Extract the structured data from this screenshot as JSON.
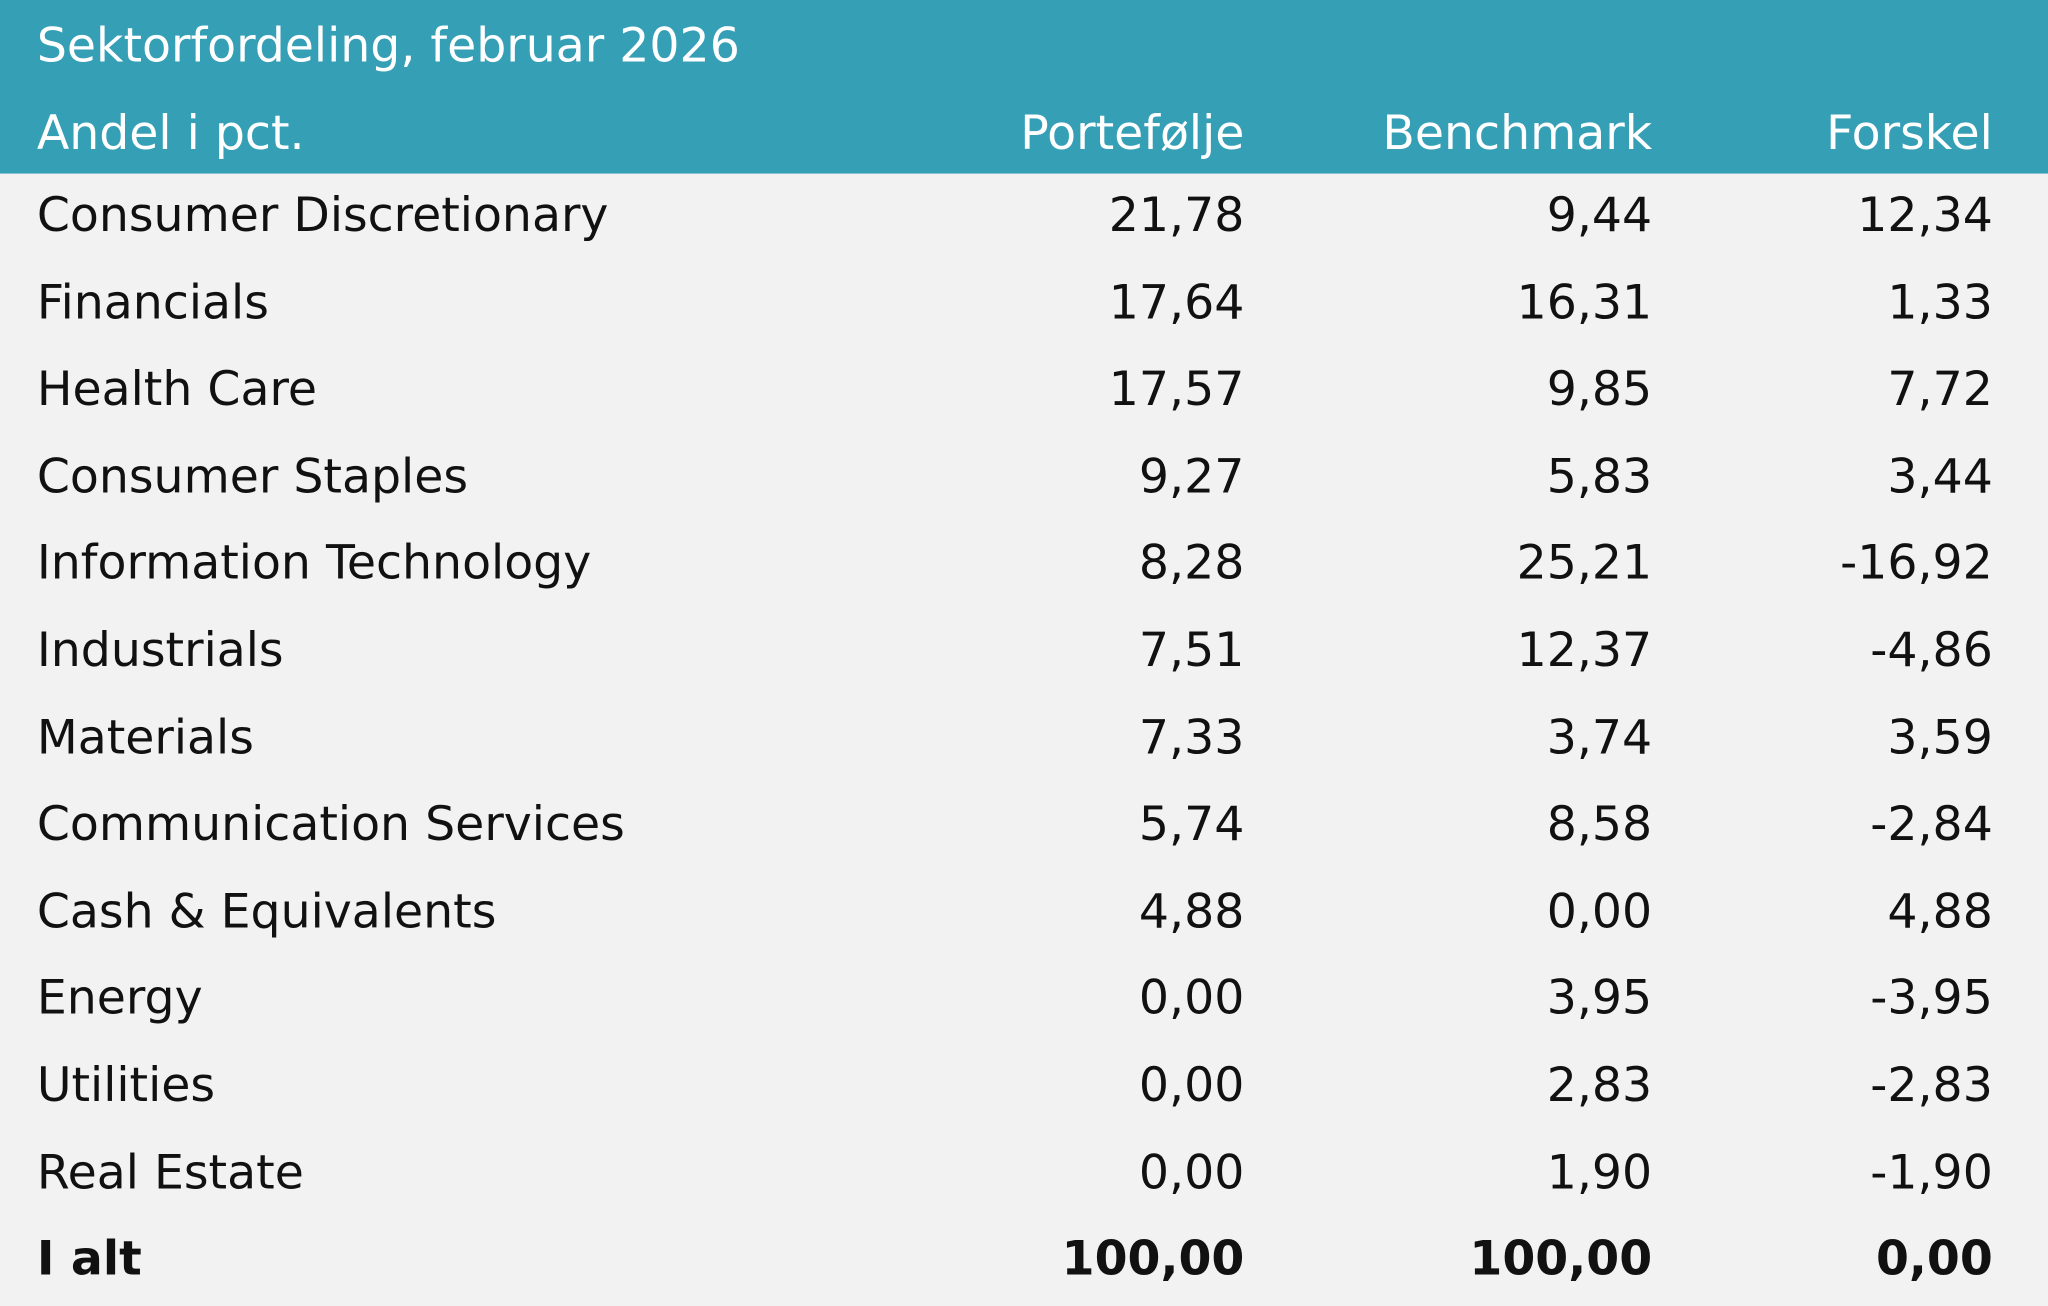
{
  "table": {
    "title": "Sektorfordeling, februar 2026",
    "columns": [
      "Andel i pct.",
      "Portefølje",
      "Benchmark",
      "Forskel"
    ],
    "rows": [
      {
        "sector": "Consumer Discretionary",
        "portfolio": "21,78",
        "benchmark": "9,44",
        "difference": "12,34"
      },
      {
        "sector": "Financials",
        "portfolio": "17,64",
        "benchmark": "16,31",
        "difference": "1,33"
      },
      {
        "sector": "Health Care",
        "portfolio": "17,57",
        "benchmark": "9,85",
        "difference": "7,72"
      },
      {
        "sector": "Consumer Staples",
        "portfolio": "9,27",
        "benchmark": "5,83",
        "difference": "3,44"
      },
      {
        "sector": "Information Technology",
        "portfolio": "8,28",
        "benchmark": "25,21",
        "difference": "-16,92"
      },
      {
        "sector": "Industrials",
        "portfolio": "7,51",
        "benchmark": "12,37",
        "difference": "-4,86"
      },
      {
        "sector": "Materials",
        "portfolio": "7,33",
        "benchmark": "3,74",
        "difference": "3,59"
      },
      {
        "sector": "Communication Services",
        "portfolio": "5,74",
        "benchmark": "8,58",
        "difference": "-2,84"
      },
      {
        "sector": "Cash & Equivalents",
        "portfolio": "4,88",
        "benchmark": "0,00",
        "difference": "4,88"
      },
      {
        "sector": "Energy",
        "portfolio": "0,00",
        "benchmark": "3,95",
        "difference": "-3,95"
      },
      {
        "sector": "Utilities",
        "portfolio": "0,00",
        "benchmark": "2,83",
        "difference": "-2,83"
      },
      {
        "sector": "Real Estate",
        "portfolio": "0,00",
        "benchmark": "1,90",
        "difference": "-1,90"
      }
    ],
    "total": {
      "sector": "I alt",
      "portfolio": "100,00",
      "benchmark": "100,00",
      "difference": "0,00"
    }
  },
  "colors": {
    "header_background": "#359fb6",
    "body_background": "#f2f2f2",
    "header_text": "#ffffff",
    "body_text": "#111111"
  }
}
